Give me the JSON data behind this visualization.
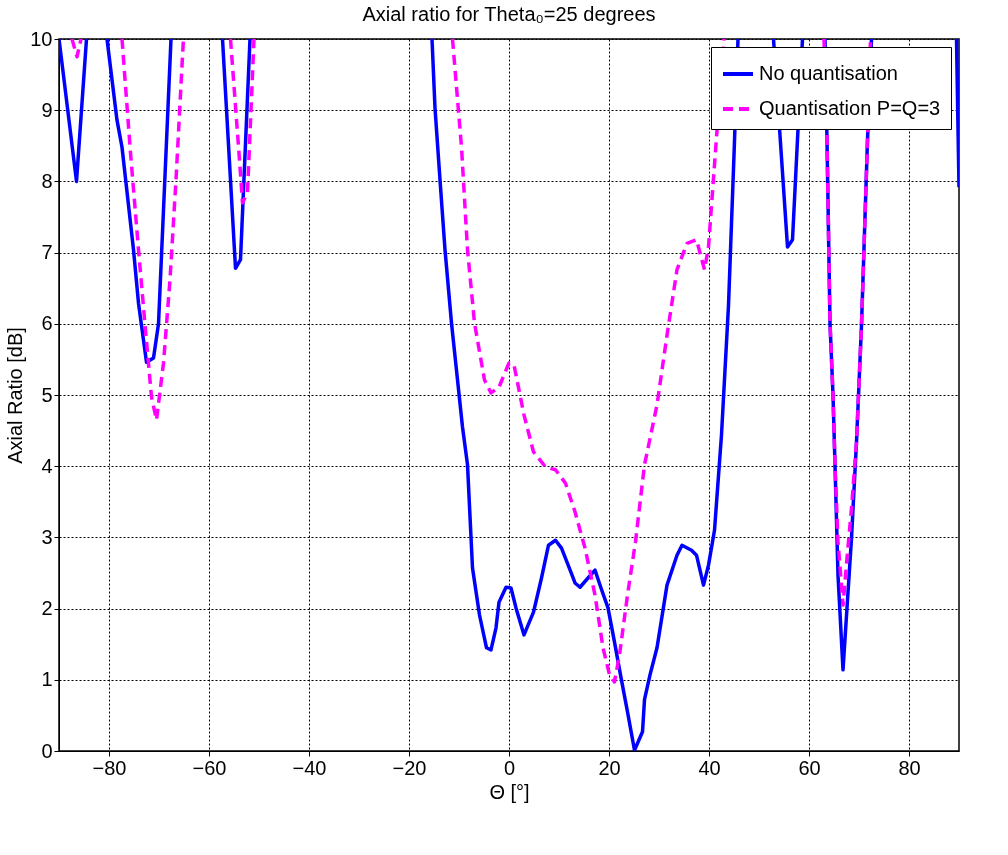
{
  "chart_data": {
    "type": "line",
    "title": "Axial ratio for Theta₀=25 degrees",
    "xlabel": "Θ [°]",
    "ylabel": "Axial Ratio [dB]",
    "xlim": [
      -90,
      90
    ],
    "xticks": [
      -80,
      -60,
      -40,
      -20,
      0,
      20,
      40,
      60,
      80
    ],
    "ylim": [
      0,
      10
    ],
    "yticks": [
      0,
      1,
      2,
      3,
      4,
      5,
      6,
      7,
      8,
      9,
      10
    ],
    "grid": true,
    "legend": "top right",
    "marker": "none",
    "series": [
      {
        "name": "No quantisation",
        "color": "#0000ff",
        "line_style": "solid",
        "x": [
          -90,
          -86.5,
          -84.5,
          -82,
          -80.4,
          -78.4,
          -77.4,
          -75.1,
          -74.1,
          -72.5,
          -71.1,
          -70.1,
          -67.6,
          -62,
          -57.3,
          -54.7,
          -53.7,
          -51.8,
          -30,
          -15.4,
          -14.8,
          -13.8,
          -12.8,
          -11.5,
          -9.3,
          -8.3,
          -7.3,
          -5.9,
          -4.5,
          -3.6,
          -2.6,
          -2.0,
          -0.6,
          0.4,
          1.4,
          3.0,
          4.9,
          6.5,
          7.9,
          9.3,
          10.5,
          12.4,
          13.2,
          14.2,
          15.8,
          17.2,
          18.4,
          19.8,
          21.1,
          22.3,
          23.7,
          25.1,
          26.7,
          27.1,
          28.2,
          29.6,
          31.6,
          33.6,
          34.6,
          36.5,
          37.5,
          38.9,
          39.9,
          41.1,
          42.5,
          43.9,
          45.0,
          45.8,
          49,
          52.9,
          55.7,
          56.7,
          58.7,
          61,
          63.2,
          63.6,
          64.2,
          64.8,
          65.2,
          65.8,
          66.8,
          67.6,
          68.5,
          69.5,
          70.5,
          71.7,
          72.5,
          80,
          89.5,
          90
        ],
        "values": [
          10,
          8.0,
          10,
          null,
          10,
          8.86,
          8.48,
          7.04,
          6.29,
          5.46,
          5.52,
          6.0,
          10,
          null,
          10,
          6.78,
          6.9,
          10,
          null,
          10,
          9.03,
          8.02,
          7.04,
          6.01,
          4.55,
          4.02,
          2.57,
          1.91,
          1.45,
          1.42,
          1.73,
          2.09,
          2.3,
          2.29,
          2.01,
          1.63,
          1.95,
          2.43,
          2.89,
          2.96,
          2.85,
          2.51,
          2.36,
          2.3,
          2.43,
          2.54,
          2.29,
          2.01,
          1.53,
          1.07,
          0.55,
          0.01,
          0.27,
          0.72,
          1.07,
          1.45,
          2.33,
          2.75,
          2.89,
          2.82,
          2.75,
          2.33,
          2.61,
          3.1,
          4.44,
          6.26,
          8.37,
          10,
          null,
          10,
          7.08,
          7.18,
          10,
          null,
          10,
          8.58,
          6.01,
          5.0,
          4.02,
          2.47,
          1.14,
          2.01,
          2.99,
          4.34,
          5.98,
          8.58,
          10,
          null,
          10,
          7.92
        ]
      },
      {
        "name": "Quantisation P=Q=3",
        "color": "#ff00ff",
        "line_style": "dashed",
        "x": [
          -87.4,
          -86.4,
          -85.6,
          -82,
          -77.4,
          -75.7,
          -74.1,
          -72.7,
          -71.5,
          -70.5,
          -69.1,
          -67.8,
          -66.6,
          -65.2,
          -65.1,
          -60,
          -55.7,
          -53.9,
          -53.3,
          -52.3,
          -51.0,
          -30,
          -11.3,
          -9.5,
          -8.3,
          -6.9,
          -4.9,
          -3.6,
          -2.0,
          0,
          1.0,
          3.0,
          4.9,
          7.3,
          9.3,
          11.3,
          13.2,
          15.2,
          17.2,
          18.8,
          20.1,
          21.1,
          22.1,
          23.7,
          25.3,
          27.1,
          29.6,
          31.6,
          33.6,
          35.6,
          37.5,
          39.1,
          39.9,
          41.5,
          42.9,
          43.0,
          53,
          63.0,
          63.6,
          64.2,
          64.8,
          65.2,
          65.8,
          66.8,
          67.6,
          68.5,
          69.5,
          70.5,
          71.7,
          72.3
        ],
        "values": [
          10,
          9.75,
          10,
          null,
          10,
          8.4,
          7.04,
          5.91,
          4.97,
          4.65,
          5.45,
          6.62,
          8.02,
          9.89,
          10,
          null,
          10,
          8.3,
          7.7,
          7.84,
          10,
          null,
          10,
          8.48,
          7.04,
          6.01,
          5.21,
          5.03,
          5.11,
          5.45,
          5.42,
          4.72,
          4.2,
          3.99,
          3.95,
          3.76,
          3.36,
          2.85,
          2.19,
          1.45,
          1.07,
          0.97,
          1.35,
          2.19,
          2.94,
          4.02,
          4.86,
          5.84,
          6.76,
          7.13,
          7.18,
          6.76,
          7.08,
          8.62,
          9.89,
          10,
          null,
          10,
          8.58,
          6.01,
          5.0,
          4.02,
          2.94,
          2.05,
          2.71,
          3.41,
          4.34,
          5.98,
          8.58,
          10
        ]
      }
    ]
  }
}
